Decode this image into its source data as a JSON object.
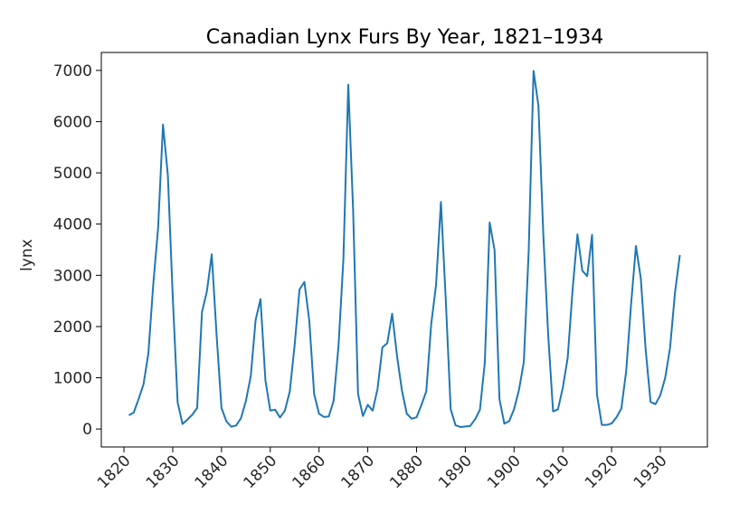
{
  "chart_data": {
    "type": "line",
    "title": "Canadian Lynx Furs By Year, 1821–1934",
    "xlabel": "",
    "ylabel": "lynx",
    "xlim": [
      1815.35,
      1939.65
    ],
    "ylim": [
      -350,
      7350
    ],
    "x_ticks": [
      1820,
      1830,
      1840,
      1850,
      1860,
      1870,
      1880,
      1890,
      1900,
      1910,
      1920,
      1930
    ],
    "y_ticks": [
      0,
      1000,
      2000,
      3000,
      4000,
      5000,
      6000,
      7000
    ],
    "grid": false,
    "color": "#1f77b4",
    "series": [
      {
        "x": [
          1821,
          1822,
          1823,
          1824,
          1825,
          1826,
          1827,
          1828,
          1829,
          1830,
          1831,
          1832,
          1833,
          1834,
          1835,
          1836,
          1837,
          1838,
          1839,
          1840,
          1841,
          1842,
          1843,
          1844,
          1845,
          1846,
          1847,
          1848,
          1849,
          1850,
          1851,
          1852,
          1853,
          1854,
          1855,
          1856,
          1857,
          1858,
          1859,
          1860,
          1861,
          1862,
          1863,
          1864,
          1865,
          1866,
          1867,
          1868,
          1869,
          1870,
          1871,
          1872,
          1873,
          1874,
          1875,
          1876,
          1877,
          1878,
          1879,
          1880,
          1881,
          1882,
          1883,
          1884,
          1885,
          1886,
          1887,
          1888,
          1889,
          1890,
          1891,
          1892,
          1893,
          1894,
          1895,
          1896,
          1897,
          1898,
          1899,
          1900,
          1901,
          1902,
          1903,
          1904,
          1905,
          1906,
          1907,
          1908,
          1909,
          1910,
          1911,
          1912,
          1913,
          1914,
          1915,
          1916,
          1917,
          1918,
          1919,
          1920,
          1921,
          1922,
          1923,
          1924,
          1925,
          1926,
          1927,
          1928,
          1929,
          1930,
          1931,
          1932,
          1933,
          1934
        ],
        "values": [
          269,
          321,
          585,
          871,
          1475,
          2821,
          3928,
          5943,
          4950,
          2577,
          523,
          98,
          184,
          279,
          409,
          2285,
          2685,
          3409,
          1824,
          409,
          151,
          45,
          68,
          213,
          546,
          1033,
          2129,
          2536,
          957,
          361,
          377,
          225,
          360,
          731,
          1638,
          2725,
          2871,
          2119,
          684,
          299,
          236,
          245,
          552,
          1623,
          3311,
          6721,
          4254,
          687,
          255,
          473,
          358,
          784,
          1594,
          1676,
          2251,
          1426,
          756,
          299,
          201,
          229,
          469,
          736,
          2042,
          2811,
          4431,
          2511,
          389,
          73,
          39,
          49,
          59,
          188,
          377,
          1292,
          4031,
          3495,
          587,
          105,
          153,
          387,
          758,
          1307,
          3465,
          6991,
          6313,
          3794,
          1836,
          345,
          382,
          808,
          1388,
          2713,
          3800,
          3091,
          2985,
          3790,
          674,
          81,
          80,
          108,
          229,
          399,
          1132,
          2432,
          3574,
          2935,
          1537,
          529,
          485,
          662,
          1000,
          1590,
          2657,
          3396
        ]
      }
    ]
  }
}
